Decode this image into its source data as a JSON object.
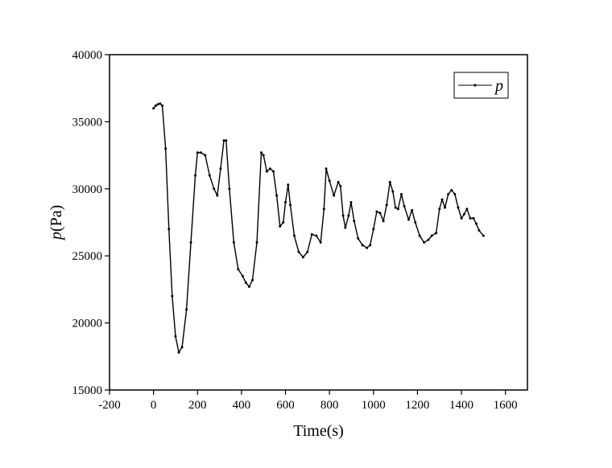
{
  "chart_data": {
    "type": "line",
    "title": "",
    "xlabel": "Time(s)",
    "ylabel_italic": "p",
    "ylabel_rest": "(Pa)",
    "xlim": [
      -200,
      1700
    ],
    "ylim": [
      15000,
      40000
    ],
    "x_ticks": [
      -200,
      0,
      200,
      400,
      600,
      800,
      1000,
      1200,
      1400,
      1600
    ],
    "y_ticks": [
      15000,
      20000,
      25000,
      30000,
      35000,
      40000
    ],
    "legend_position": "top-right",
    "series": [
      {
        "name": "p",
        "color": "#000000",
        "points": [
          [
            0,
            36000
          ],
          [
            10,
            36200
          ],
          [
            20,
            36300
          ],
          [
            30,
            36350
          ],
          [
            40,
            36200
          ],
          [
            55,
            33000
          ],
          [
            70,
            27000
          ],
          [
            85,
            22000
          ],
          [
            100,
            19000
          ],
          [
            115,
            17800
          ],
          [
            130,
            18200
          ],
          [
            150,
            21000
          ],
          [
            170,
            26000
          ],
          [
            190,
            31000
          ],
          [
            200,
            32700
          ],
          [
            215,
            32700
          ],
          [
            235,
            32500
          ],
          [
            255,
            31000
          ],
          [
            275,
            30000
          ],
          [
            290,
            29500
          ],
          [
            305,
            31500
          ],
          [
            320,
            33600
          ],
          [
            330,
            33600
          ],
          [
            345,
            30000
          ],
          [
            365,
            26000
          ],
          [
            385,
            24000
          ],
          [
            405,
            23500
          ],
          [
            420,
            23000
          ],
          [
            435,
            22700
          ],
          [
            450,
            23200
          ],
          [
            470,
            26000
          ],
          [
            490,
            32700
          ],
          [
            500,
            32500
          ],
          [
            515,
            31300
          ],
          [
            530,
            31500
          ],
          [
            545,
            31300
          ],
          [
            560,
            29500
          ],
          [
            575,
            27200
          ],
          [
            590,
            27500
          ],
          [
            600,
            29000
          ],
          [
            612,
            30300
          ],
          [
            622,
            28800
          ],
          [
            640,
            26500
          ],
          [
            660,
            25300
          ],
          [
            680,
            24900
          ],
          [
            700,
            25300
          ],
          [
            720,
            26600
          ],
          [
            740,
            26500
          ],
          [
            760,
            26000
          ],
          [
            775,
            28500
          ],
          [
            785,
            31500
          ],
          [
            800,
            30600
          ],
          [
            820,
            29500
          ],
          [
            840,
            30500
          ],
          [
            850,
            30200
          ],
          [
            862,
            28000
          ],
          [
            872,
            27100
          ],
          [
            887,
            28000
          ],
          [
            898,
            29000
          ],
          [
            912,
            27600
          ],
          [
            930,
            26300
          ],
          [
            950,
            25800
          ],
          [
            970,
            25600
          ],
          [
            985,
            25800
          ],
          [
            1000,
            27000
          ],
          [
            1015,
            28300
          ],
          [
            1030,
            28200
          ],
          [
            1045,
            27600
          ],
          [
            1060,
            28800
          ],
          [
            1075,
            30500
          ],
          [
            1088,
            29800
          ],
          [
            1100,
            28600
          ],
          [
            1112,
            28500
          ],
          [
            1127,
            29600
          ],
          [
            1140,
            28700
          ],
          [
            1160,
            27700
          ],
          [
            1175,
            28400
          ],
          [
            1190,
            27500
          ],
          [
            1210,
            26500
          ],
          [
            1230,
            26000
          ],
          [
            1250,
            26200
          ],
          [
            1265,
            26500
          ],
          [
            1285,
            26700
          ],
          [
            1300,
            28500
          ],
          [
            1312,
            29200
          ],
          [
            1325,
            28600
          ],
          [
            1340,
            29600
          ],
          [
            1355,
            29900
          ],
          [
            1370,
            29600
          ],
          [
            1385,
            28600
          ],
          [
            1400,
            27800
          ],
          [
            1412,
            28100
          ],
          [
            1425,
            28500
          ],
          [
            1440,
            27800
          ],
          [
            1455,
            27800
          ],
          [
            1467,
            27400
          ],
          [
            1480,
            26900
          ],
          [
            1500,
            26500
          ]
        ]
      }
    ]
  }
}
